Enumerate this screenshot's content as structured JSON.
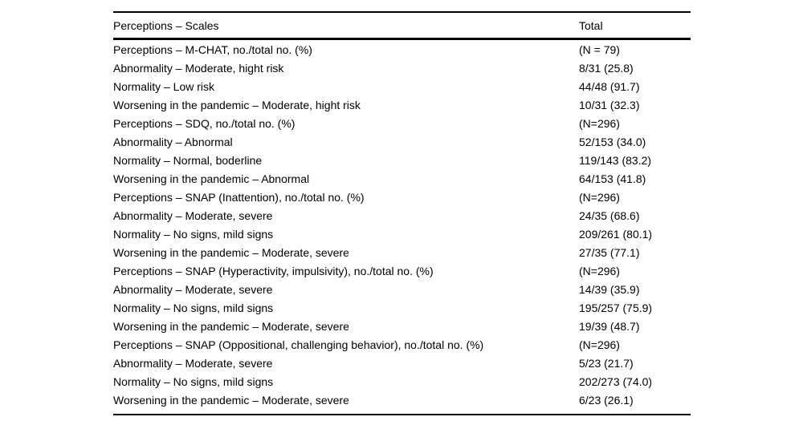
{
  "table": {
    "columns": [
      "Perceptions – Scales",
      "Total"
    ],
    "rows": [
      {
        "label": "Perceptions – M-CHAT, no./total no. (%)",
        "total": "(N = 79)"
      },
      {
        "label": "Abnormality – Moderate, hight risk",
        "total": "8/31 (25.8)"
      },
      {
        "label": "Normality – Low risk",
        "total": "44/48 (91.7)"
      },
      {
        "label": "Worsening in the pandemic – Moderate, hight risk",
        "total": "10/31 (32.3)"
      },
      {
        "label": "Perceptions – SDQ, no./total no. (%)",
        "total": "(N=296)"
      },
      {
        "label": "Abnormality – Abnormal",
        "total": "52/153 (34.0)"
      },
      {
        "label": "Normality – Normal, boderline",
        "total": "119/143 (83.2)"
      },
      {
        "label": "Worsening in the pandemic – Abnormal",
        "total": "64/153 (41.8)"
      },
      {
        "label": "Perceptions – SNAP (Inattention), no./total no. (%)",
        "total": "(N=296)"
      },
      {
        "label": "Abnormality – Moderate, severe",
        "total": "24/35 (68.6)"
      },
      {
        "label": "Normality – No signs, mild signs",
        "total": "209/261 (80.1)"
      },
      {
        "label": "Worsening in the pandemic – Moderate, severe",
        "total": "27/35 (77.1)"
      },
      {
        "label": "Perceptions – SNAP (Hyperactivity, impulsivity), no./total no. (%)",
        "total": "(N=296)"
      },
      {
        "label": "Abnormality – Moderate, severe",
        "total": "14/39 (35.9)"
      },
      {
        "label": "Normality – No signs, mild signs",
        "total": "195/257 (75.9)"
      },
      {
        "label": "Worsening in the pandemic – Moderate, severe",
        "total": "19/39 (48.7)"
      },
      {
        "label": "Perceptions – SNAP (Oppositional, challenging behavior), no./total no. (%)",
        "total": "(N=296)"
      },
      {
        "label": "Abnormality – Moderate, severe",
        "total": "5/23 (21.7)"
      },
      {
        "label": "Normality – No signs, mild signs",
        "total": "202/273 (74.0)"
      },
      {
        "label": "Worsening in the pandemic – Moderate, severe",
        "total": "6/23 (26.1)"
      }
    ],
    "text_color": "#000000",
    "rule_color": "#000000"
  }
}
